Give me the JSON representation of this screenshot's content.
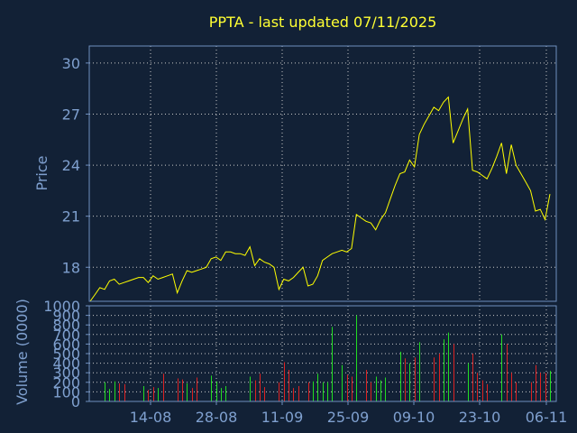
{
  "colors": {
    "background": "#122136",
    "axis": "#6f8fbf",
    "label": "#7fa0cf",
    "title": "#ffff33",
    "price_line": "#ffff00",
    "volume_up": "#22dd22",
    "volume_down": "#dd2222",
    "grid": "#c8c8c8"
  },
  "chart_data": [
    {
      "type": "line",
      "title": "PPTA - last updated 07/11/2025",
      "ylabel": "Price",
      "xlabel": "",
      "ylim": [
        16,
        31
      ],
      "y_ticks": [
        18,
        21,
        24,
        27,
        30
      ],
      "x_ticks": [
        "14-08",
        "28-08",
        "11-09",
        "25-09",
        "09-10",
        "23-10",
        "06-11"
      ],
      "grid": true,
      "series": [
        {
          "values": [
            16.0,
            16.4,
            16.8,
            16.7,
            17.2,
            17.3,
            17.0,
            17.1,
            17.2,
            17.3,
            17.4,
            17.4,
            17.1,
            17.5,
            17.3,
            17.4,
            17.5,
            17.6,
            16.5,
            17.2,
            17.8,
            17.7,
            17.8,
            17.9,
            18.0,
            18.5,
            18.6,
            18.4,
            18.9,
            18.9,
            18.8,
            18.8,
            18.7,
            19.2,
            18.1,
            18.5,
            18.3,
            18.2,
            18.0,
            16.7,
            17.3,
            17.2,
            17.4,
            17.7,
            18.0,
            16.9,
            17.0,
            17.5,
            18.4,
            18.6,
            18.8,
            18.9,
            19.0,
            18.9,
            19.1,
            21.1,
            20.9,
            20.7,
            20.6,
            20.2,
            20.8,
            21.2,
            22.0,
            22.8,
            23.5,
            23.6,
            24.3,
            23.9,
            25.8,
            26.4,
            26.9,
            27.4,
            27.2,
            27.7,
            28.0,
            25.3,
            26.0,
            26.7,
            27.3,
            23.7,
            23.6,
            23.4,
            23.2,
            23.8,
            24.5,
            25.3,
            23.5,
            25.2,
            24.0,
            23.5,
            23.0,
            22.5,
            21.3,
            21.4,
            20.8,
            22.3
          ]
        }
      ]
    },
    {
      "type": "bar",
      "ylabel": "Volume (0000)",
      "ylim": [
        0,
        1000
      ],
      "y_ticks": [
        0,
        100,
        200,
        300,
        400,
        500,
        600,
        700,
        800,
        900,
        1000
      ],
      "x_ticks": [
        "14-08",
        "28-08",
        "11-09",
        "25-09",
        "09-10",
        "23-10",
        "06-11"
      ],
      "grid": true,
      "series": [
        {
          "values": [
            0,
            0,
            0,
            200,
            130,
            210,
            190,
            180,
            0,
            0,
            0,
            160,
            120,
            150,
            140,
            290,
            0,
            0,
            240,
            230,
            190,
            140,
            250,
            0,
            0,
            270,
            210,
            140,
            160,
            0,
            0,
            0,
            0,
            260,
            220,
            290,
            150,
            0,
            0,
            200,
            410,
            330,
            140,
            160,
            0,
            200,
            210,
            290,
            200,
            200,
            780,
            0,
            380,
            280,
            260,
            900,
            0,
            330,
            200,
            260,
            220,
            250,
            0,
            0,
            520,
            450,
            400,
            460,
            620,
            0,
            0,
            460,
            500,
            650,
            720,
            600,
            0,
            0,
            400,
            500,
            300,
            220,
            180,
            0,
            0,
            700,
            600,
            300,
            200,
            0,
            0,
            200,
            380,
            300,
            300,
            320
          ],
          "directions": [
            "up",
            "up",
            "up",
            "up",
            "up",
            "up",
            "down",
            "down",
            "up",
            "up",
            "up",
            "up",
            "down",
            "down",
            "up",
            "down",
            "up",
            "up",
            "down",
            "down",
            "up",
            "down",
            "down",
            "up",
            "up",
            "up",
            "up",
            "up",
            "up",
            "up",
            "up",
            "up",
            "up",
            "up",
            "down",
            "down",
            "down",
            "up",
            "up",
            "down",
            "down",
            "down",
            "down",
            "down",
            "up",
            "down",
            "up",
            "up",
            "up",
            "up",
            "up",
            "up",
            "up",
            "down",
            "down",
            "up",
            "up",
            "down",
            "down",
            "up",
            "up",
            "up",
            "up",
            "up",
            "up",
            "down",
            "up",
            "down",
            "up",
            "up",
            "up",
            "down",
            "down",
            "up",
            "up",
            "down",
            "up",
            "up",
            "up",
            "down",
            "down",
            "down",
            "down",
            "up",
            "up",
            "up",
            "down",
            "down",
            "down",
            "up",
            "up",
            "down",
            "down",
            "down",
            "down",
            "up"
          ]
        }
      ]
    }
  ]
}
